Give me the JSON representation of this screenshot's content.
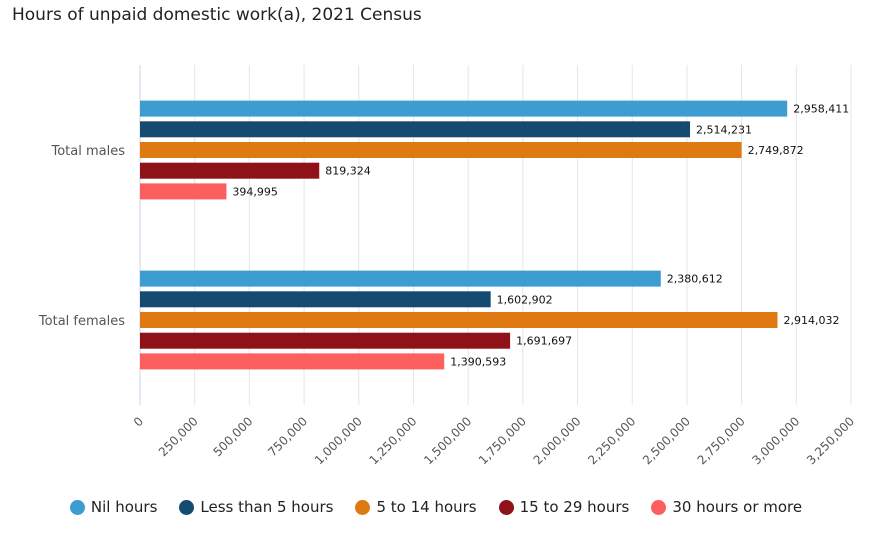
{
  "chart_data": {
    "type": "bar",
    "orientation": "horizontal",
    "title": "Hours of unpaid domestic work(a), 2021 Census",
    "categories": [
      "Total males",
      "Total females"
    ],
    "series": [
      {
        "name": "Nil hours",
        "color": "#3d9dd1",
        "values": [
          2958411,
          2380612
        ],
        "labels": [
          "2,958,411",
          "2,380,612"
        ]
      },
      {
        "name": "Less than 5 hours",
        "color": "#154b71",
        "values": [
          2514231,
          1602902
        ],
        "labels": [
          "2,514,231",
          "1,602,902"
        ]
      },
      {
        "name": "5 to 14 hours",
        "color": "#df7a13",
        "values": [
          2749872,
          2914032
        ],
        "labels": [
          "2,749,872",
          "2,914,032"
        ]
      },
      {
        "name": "15 to 29 hours",
        "color": "#8e1218",
        "values": [
          819324,
          1691697
        ],
        "labels": [
          "819,324",
          "1,691,697"
        ]
      },
      {
        "name": "30 hours or more",
        "color": "#fd5e5e",
        "values": [
          394995,
          1390593
        ],
        "labels": [
          "394,995",
          "1,390,593"
        ]
      }
    ],
    "xlim": [
      0,
      3250000
    ],
    "xticks": [
      0,
      250000,
      500000,
      750000,
      1000000,
      1250000,
      1500000,
      1750000,
      2000000,
      2250000,
      2500000,
      2750000,
      3000000,
      3250000
    ],
    "xtick_labels": [
      "0",
      "250,000",
      "500,000",
      "750,000",
      "1,000,000",
      "1,250,000",
      "1,500,000",
      "1,750,000",
      "2,000,000",
      "2,250,000",
      "2,500,000",
      "2,750,000",
      "3,000,000",
      "3,250,000"
    ],
    "grid": true,
    "legend_position": "bottom",
    "xlabel": "",
    "ylabel": ""
  }
}
